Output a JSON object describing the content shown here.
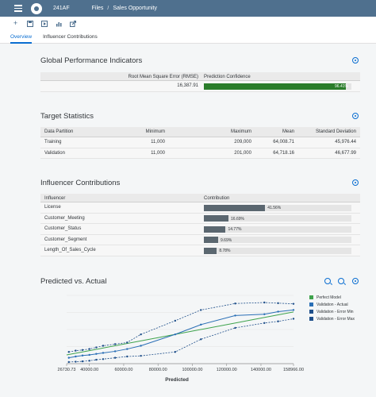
{
  "shell": {
    "title": "241AF",
    "breadcrumbs": [
      "Files",
      "Sales Opportunity"
    ],
    "separator": "/"
  },
  "tabs": [
    {
      "label": "Overview"
    },
    {
      "label": "Influencer Contributions"
    }
  ],
  "gpi": {
    "title": "Global Performance Indicators",
    "headers": [
      "Root Mean Square Error (RMSE)",
      "Prediction Confidence"
    ],
    "rmse": "16,387.91",
    "confidence_label": "96.41%",
    "confidence_value": 0.9641,
    "bar_color": "#2b7d2b"
  },
  "target": {
    "title": "Target Statistics",
    "headers": [
      "Data Partition",
      "Minimum",
      "Maximum",
      "Mean",
      "Standard Deviation"
    ],
    "rows": [
      [
        "Training",
        "11,000",
        "209,000",
        "64,008.71",
        "45,976.44"
      ],
      [
        "Validation",
        "11,000",
        "201,000",
        "64,718.16",
        "46,677.99"
      ]
    ]
  },
  "influencers": {
    "title": "Influencer Contributions",
    "headers": [
      "Influencer",
      "Contribution"
    ],
    "bar_color": "#5b6770",
    "rows": [
      {
        "name": "License",
        "label": "41.56%",
        "value": 0.4156
      },
      {
        "name": "Customer_Meeting",
        "label": "16.69%",
        "value": 0.1669
      },
      {
        "name": "Customer_Status",
        "label": "14.77%",
        "value": 0.1477
      },
      {
        "name": "Customer_Segment",
        "label": "9.69%",
        "value": 0.0969
      },
      {
        "name": "Length_Of_Sales_Cycle",
        "label": "8.78%",
        "value": 0.0878
      }
    ]
  },
  "pva": {
    "title": "Predicted vs. Actual",
    "chart_data": {
      "type": "line",
      "title": "Predicted vs. Actual",
      "xlabel": "Predicted",
      "ylabel": "",
      "xlim": [
        26730.73,
        158966
      ],
      "ylim": [
        0,
        210000
      ],
      "x_tick_labels": [
        "26730.73",
        "40000.00",
        "60000.00",
        "80000.00",
        "100000.00",
        "120000.00",
        "140000.00",
        "158966.00"
      ],
      "x_ticks": [
        26730.73,
        40000,
        60000,
        80000,
        100000,
        120000,
        140000,
        158966
      ],
      "legend_position": "right",
      "series": [
        {
          "name": "Perfect Model",
          "color": "#3fa34d",
          "style": "solid",
          "x": [
            26730.73,
            40000,
            60000,
            80000,
            100000,
            120000,
            140000,
            158966
          ],
          "y": [
            26730.73,
            40000,
            60000,
            80000,
            100000,
            120000,
            140000,
            158966
          ]
        },
        {
          "name": "Validation - Actual",
          "color": "#2a6fb6",
          "style": "solid",
          "x": [
            28000,
            32000,
            36000,
            40000,
            44000,
            48000,
            55000,
            62000,
            70000,
            90000,
            105000,
            125000,
            142000,
            150000,
            158966
          ],
          "y": [
            18000,
            22000,
            25000,
            27000,
            30000,
            33000,
            38000,
            45000,
            55000,
            90000,
            120000,
            148000,
            152000,
            160000,
            165000
          ]
        },
        {
          "name": "Validation - Error Min",
          "color": "#1f4f8a",
          "style": "dashed",
          "x": [
            28000,
            32000,
            36000,
            40000,
            44000,
            48000,
            55000,
            62000,
            70000,
            90000,
            105000,
            125000,
            142000,
            150000,
            158966
          ],
          "y": [
            5000,
            6000,
            7000,
            9000,
            12000,
            14000,
            18000,
            22000,
            24000,
            36000,
            75000,
            110000,
            125000,
            130000,
            138000
          ]
        },
        {
          "name": "Validation - Error Max",
          "color": "#1f4f8a",
          "style": "dashed",
          "x": [
            28000,
            32000,
            36000,
            40000,
            44000,
            48000,
            55000,
            62000,
            70000,
            90000,
            105000,
            125000,
            142000,
            150000,
            158966
          ],
          "y": [
            36000,
            40000,
            42000,
            45000,
            50000,
            55000,
            60000,
            65000,
            90000,
            132000,
            165000,
            185000,
            188000,
            186000,
            184000
          ]
        }
      ]
    }
  }
}
